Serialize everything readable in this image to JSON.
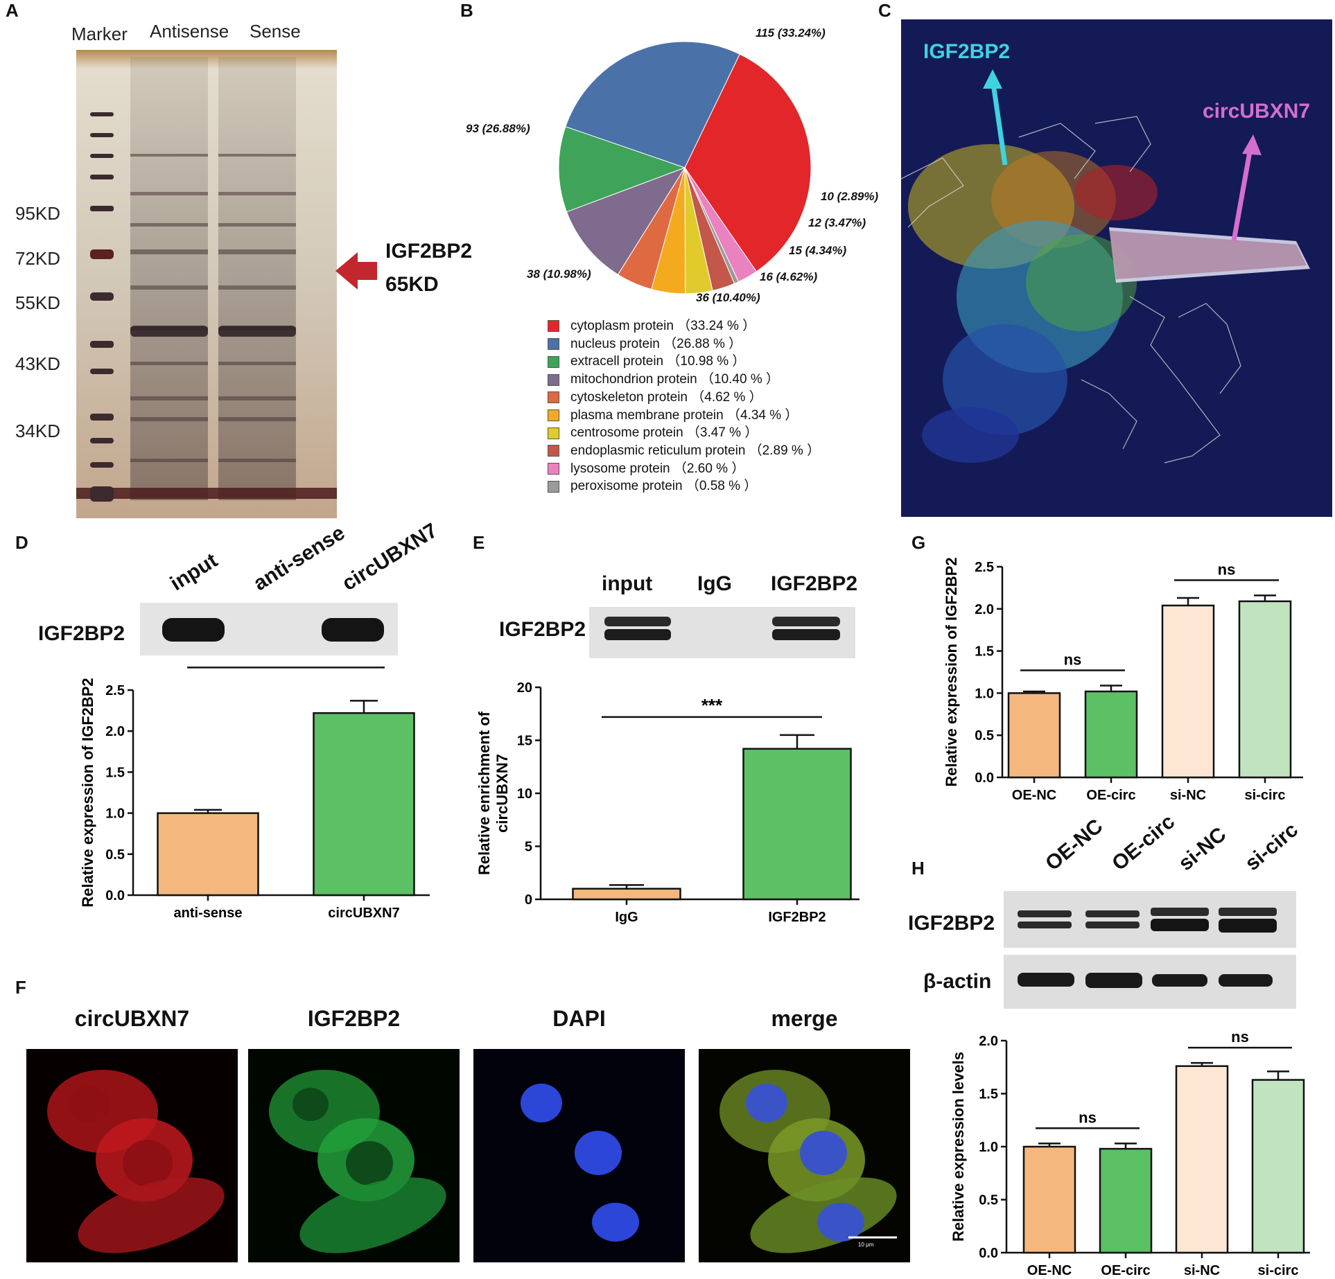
{
  "panel_letters": [
    "A",
    "B",
    "C",
    "D",
    "E",
    "F",
    "G",
    "H"
  ],
  "panel_a": {
    "lanes": [
      "Marker",
      "Antisense",
      "Sense"
    ],
    "markers": [
      "95KD",
      "72KD",
      "55KD",
      "43KD",
      "34KD"
    ],
    "arrow_label_1": "IGF2BP2",
    "arrow_label_2": "65KD"
  },
  "panel_c": {
    "label_left": "IGF2BP2",
    "label_right": "circUBXN7",
    "colors": {
      "left": "#3fd3e0",
      "right": "#d46fcf",
      "bg": "#141a56"
    }
  },
  "panel_d_blot": {
    "lanes": [
      "input",
      "anti-sense",
      "circUBXN7"
    ],
    "row_label": "IGF2BP2"
  },
  "panel_e_blot": {
    "lanes": [
      "input",
      "IgG",
      "IGF2BP2"
    ],
    "row_label": "IGF2BP2"
  },
  "panel_f": {
    "titles": [
      "circUBXN7",
      "IGF2BP2",
      "DAPI",
      "merge"
    ],
    "scale_bar": "10 μm"
  },
  "panel_h_blot": {
    "lanes": [
      "OE-NC",
      "OE-circ",
      "si-NC",
      "si-circ"
    ],
    "rows": [
      "IGF2BP2",
      "β-actin"
    ]
  },
  "chart_data": [
    {
      "panel": "B",
      "type": "pie",
      "slices": [
        {
          "label": "cytoplasm protein",
          "count": 115,
          "percent": 33.24,
          "slice_label": "115 (33.24%)",
          "legend": "cytoplasm protein （33.24 % ）",
          "color": "#e3262a"
        },
        {
          "label": "lysosome protein",
          "count": 9,
          "percent": 2.6,
          "slice_label": "",
          "legend": "lysosome protein （2.60 % ）",
          "color": "#ea82c0"
        },
        {
          "label": "peroxisome protein",
          "count": 2,
          "percent": 0.58,
          "slice_label": "",
          "legend": "peroxisome protein （0.58 % ）",
          "color": "#9a9a9a"
        },
        {
          "label": "endoplasmic reticulum protein",
          "count": 10,
          "percent": 2.89,
          "slice_label": "10 (2.89%)",
          "legend": "endoplasmic reticulum protein （2.89 % ）",
          "color": "#c2574a"
        },
        {
          "label": "centrosome protein",
          "count": 12,
          "percent": 3.47,
          "slice_label": "12 (3.47%)",
          "legend": "centrosome protein （3.47 % ）",
          "color": "#e1cb2c"
        },
        {
          "label": "plasma membrane protein",
          "count": 15,
          "percent": 4.34,
          "slice_label": "15 (4.34%)",
          "legend": "plasma membrane protein （4.34 % ）",
          "color": "#f4aa1e"
        },
        {
          "label": "cytoskeleton protein",
          "count": 16,
          "percent": 4.62,
          "slice_label": "16 (4.62%)",
          "legend": "cytoskeleton protein （4.62 % ）",
          "color": "#df6a42"
        },
        {
          "label": "mitochondrion protein",
          "count": 36,
          "percent": 10.4,
          "slice_label": "36 (10.40%)",
          "legend": "mitochondrion protein （10.40 % ）",
          "color": "#7f6b8d"
        },
        {
          "label": "extracell protein",
          "count": 38,
          "percent": 10.98,
          "slice_label": "38 (10.98%)",
          "legend": "extracell protein （10.98 % ）",
          "color": "#3fa35a"
        },
        {
          "label": "nucleus protein",
          "count": 93,
          "percent": 26.88,
          "slice_label": "93 (26.88%)",
          "legend": "nucleus protein （26.88 % ）",
          "color": "#4a72a8"
        }
      ],
      "legend_order": [
        "cytoplasm protein",
        "nucleus protein",
        "extracell protein",
        "mitochondrion protein",
        "cytoskeleton protein",
        "plasma membrane protein",
        "centrosome protein",
        "endoplasmic reticulum protein",
        "lysosome protein",
        "peroxisome protein"
      ]
    },
    {
      "panel": "D",
      "type": "bar",
      "categories": [
        "anti-sense",
        "circUBXN7"
      ],
      "values": [
        1.0,
        2.22
      ],
      "errors": [
        0.04,
        0.15
      ],
      "colors": [
        "#f4b87e",
        "#5cc064"
      ],
      "ylabel": "Relative expression of IGF2BP2",
      "ylim": [
        0,
        2.5
      ],
      "yticks": [
        "0.0",
        "0.5",
        "1.0",
        "1.5",
        "2.0",
        "2.5"
      ],
      "significance": [
        {
          "pair": [
            0,
            1
          ],
          "text": "**"
        }
      ]
    },
    {
      "panel": "E",
      "type": "bar",
      "categories": [
        "IgG",
        "IGF2BP2"
      ],
      "values": [
        1.0,
        14.2
      ],
      "errors": [
        0.35,
        1.3
      ],
      "colors": [
        "#f4b87e",
        "#5cc064"
      ],
      "ylabel_line1": "Relative enrichment of",
      "ylabel_line2": "circUBXN7",
      "ylim": [
        0,
        20
      ],
      "yticks": [
        "0",
        "5",
        "10",
        "15",
        "20"
      ],
      "significance": [
        {
          "pair": [
            0,
            1
          ],
          "text": "***"
        }
      ]
    },
    {
      "panel": "G",
      "type": "bar",
      "categories": [
        "OE-NC",
        "OE-circ",
        "si-NC",
        "si-circ"
      ],
      "values": [
        1.0,
        1.02,
        2.04,
        2.09
      ],
      "errors": [
        0.02,
        0.07,
        0.09,
        0.07
      ],
      "colors": [
        "#f4b87e",
        "#5cc064",
        "#fbe7d3",
        "#c1e3c0"
      ],
      "ylabel": "Relative expression of IGF2BP2",
      "ylim": [
        0,
        2.5
      ],
      "yticks": [
        "0.0",
        "0.5",
        "1.0",
        "1.5",
        "2.0",
        "2.5"
      ],
      "significance": [
        {
          "pair": [
            0,
            1
          ],
          "text": "ns"
        },
        {
          "pair": [
            2,
            3
          ],
          "text": "ns"
        }
      ]
    },
    {
      "panel": "H",
      "type": "bar",
      "categories": [
        "OE-NC",
        "OE-circ",
        "si-NC",
        "si-circ"
      ],
      "values": [
        1.0,
        0.98,
        1.76,
        1.63
      ],
      "errors": [
        0.03,
        0.05,
        0.03,
        0.08
      ],
      "colors": [
        "#f4b87e",
        "#5cc064",
        "#fbe7d3",
        "#c1e3c0"
      ],
      "ylabel": "Relative expression levels",
      "ylim": [
        0,
        2.0
      ],
      "yticks": [
        "0.0",
        "0.5",
        "1.0",
        "1.5",
        "2.0"
      ],
      "significance": [
        {
          "pair": [
            0,
            1
          ],
          "text": "ns"
        },
        {
          "pair": [
            2,
            3
          ],
          "text": "ns"
        }
      ]
    }
  ]
}
